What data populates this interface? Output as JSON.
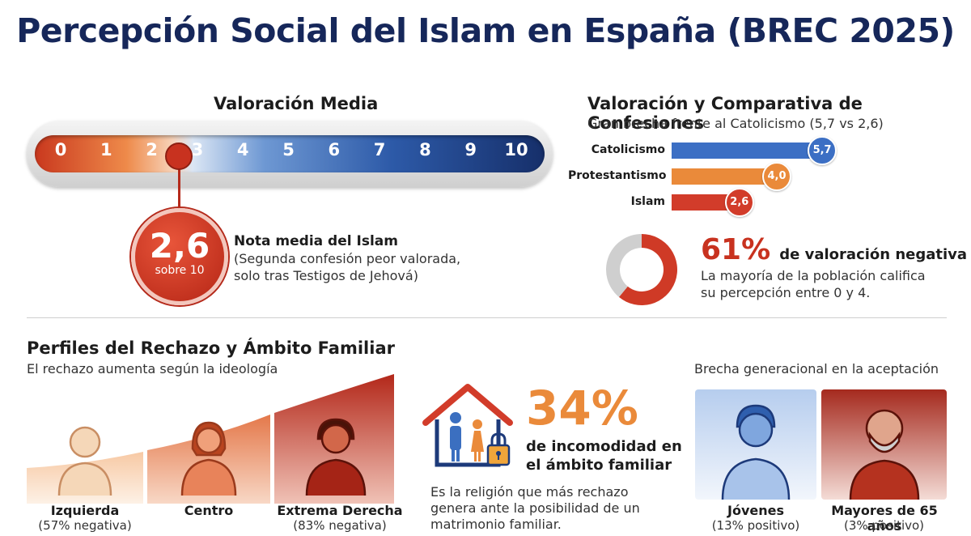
{
  "title": "Percepción Social del Islam en España (BREC 2025)",
  "scale": {
    "heading": "Valoración Media",
    "ticks": [
      "0",
      "1",
      "2",
      "3",
      "4",
      "5",
      "6",
      "7",
      "8",
      "9",
      "10"
    ],
    "value": 2.6,
    "value_label": "2,6",
    "value_sub": "sobre 10",
    "note_title": "Nota media del Islam",
    "note_line1": "(Segunda confesión peor valorada,",
    "note_line2": "solo tras Testigos de Jehová)"
  },
  "chart_data": [
    {
      "type": "bar",
      "title": "Valoración y Comparativa de Confesiones",
      "subtitle": "Gran brecha frente al Catolicismo (5,7 vs 2,6)",
      "categories": [
        "Catolicismo",
        "Protestantismo",
        "Islam"
      ],
      "values": [
        5.7,
        4.0,
        2.6
      ],
      "value_labels": [
        "5,7",
        "4,0",
        "2,6"
      ],
      "colors": [
        "#3c6fc4",
        "#ea8a3a",
        "#d23c2a"
      ],
      "orientation": "horizontal"
    },
    {
      "type": "pie",
      "categories": [
        "Valoración negativa",
        "Resto"
      ],
      "values": [
        61,
        39
      ],
      "colors": [
        "#cf3a26",
        "#cfcfcf"
      ]
    }
  ],
  "negative": {
    "pct": "61%",
    "label": "de valoración negativa",
    "line1": "La mayoría de la población califica",
    "line2": "su percepción entre 0 y 4."
  },
  "profiles": {
    "heading": "Perfiles del Rechazo y Ámbito Familiar",
    "subtitle": "El rechazo aumenta según la ideología",
    "items": [
      {
        "name": "Izquierda",
        "detail": "(57% negativa)"
      },
      {
        "name": "Centro",
        "detail": ""
      },
      {
        "name": "Extrema Derecha",
        "detail": "(83% negativa)"
      }
    ]
  },
  "family": {
    "pct": "34%",
    "line1": "de incomodidad en",
    "line2": "el ámbito familiar",
    "desc1": "Es la religión que más rechazo",
    "desc2": "genera ante la posibilidad de un",
    "desc3": "matrimonio familiar."
  },
  "generation": {
    "heading": "Brecha generacional en la aceptación",
    "items": [
      {
        "name": "Jóvenes",
        "detail": "(13% positivo)"
      },
      {
        "name": "Mayores de 65 años",
        "detail": "(3% positivo)"
      }
    ]
  },
  "icons": [
    "house-family-icon",
    "lock-icon",
    "person-icon",
    "donut-chart-icon"
  ]
}
